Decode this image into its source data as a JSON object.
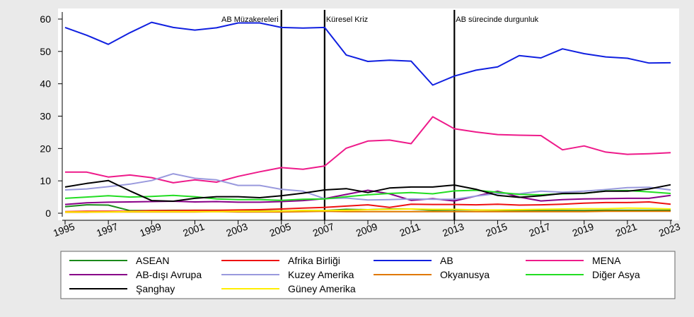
{
  "chart_data": {
    "type": "line",
    "x": [
      1995,
      1996,
      1997,
      1998,
      1999,
      2000,
      2001,
      2002,
      2003,
      2004,
      2005,
      2006,
      2007,
      2008,
      2009,
      2010,
      2011,
      2012,
      2013,
      2014,
      2015,
      2016,
      2017,
      2018,
      2019,
      2020,
      2021,
      2022,
      2023
    ],
    "x_ticks": [
      "1995",
      "1997",
      "1999",
      "2001",
      "2003",
      "2005",
      "2007",
      "2009",
      "2011",
      "2013",
      "2015",
      "2017",
      "2019",
      "2021",
      "2023"
    ],
    "y_ticks": [
      "0",
      "10",
      "20",
      "30",
      "40",
      "50",
      "60"
    ],
    "ylim": [
      0,
      62
    ],
    "xlim": [
      1995,
      2023
    ],
    "grid": false,
    "legend_position": "bottom",
    "legend_columns": 4,
    "annotations": [
      {
        "x": 2005,
        "label": "AB Müzakereleri"
      },
      {
        "x": 2007,
        "label": "Küresel Kriz"
      },
      {
        "x": 2013,
        "label": "AB sürecinde durgunluk"
      }
    ],
    "series": [
      {
        "name": "ASEAN",
        "color": "#1a8a1a",
        "values": [
          2.0,
          2.6,
          2.5,
          0.8,
          0.8,
          0.9,
          0.9,
          0.9,
          0.8,
          0.7,
          0.7,
          0.8,
          0.8,
          1.2,
          1.1,
          1.3,
          1.3,
          0.9,
          1.0,
          1.0,
          0.9,
          0.8,
          0.8,
          0.8,
          0.8,
          0.9,
          0.9,
          0.9,
          0.9
        ]
      },
      {
        "name": "Afrika Birliği",
        "color": "#ee1111",
        "values": [
          0.5,
          0.6,
          0.6,
          0.6,
          0.8,
          0.8,
          0.9,
          0.9,
          1.0,
          1.1,
          1.3,
          1.6,
          1.8,
          2.2,
          2.6,
          1.8,
          2.8,
          2.7,
          2.7,
          2.6,
          2.8,
          2.5,
          2.6,
          2.8,
          3.1,
          3.3,
          3.3,
          3.5,
          2.8
        ]
      },
      {
        "name": "AB",
        "color": "#1020e0",
        "values": [
          57.4,
          55.0,
          52.2,
          55.8,
          59.0,
          57.4,
          56.6,
          57.3,
          58.8,
          58.8,
          57.4,
          57.2,
          57.4,
          48.9,
          46.9,
          47.3,
          47.0,
          39.6,
          42.4,
          44.2,
          45.2,
          48.7,
          48.0,
          50.8,
          49.3,
          48.3,
          47.9,
          46.4,
          46.5
        ]
      },
      {
        "name": "MENA",
        "color": "#ee1a8a",
        "values": [
          12.7,
          12.7,
          11.2,
          11.8,
          11.0,
          9.4,
          10.3,
          9.6,
          11.4,
          12.8,
          14.1,
          13.6,
          14.6,
          20.1,
          22.3,
          22.6,
          21.5,
          29.8,
          26.1,
          25.1,
          24.3,
          24.1,
          24.0,
          19.6,
          20.8,
          18.9,
          18.2,
          18.4,
          18.7
        ]
      },
      {
        "name": "AB-dışı Avrupa",
        "color": "#880088",
        "values": [
          2.7,
          3.2,
          3.4,
          3.5,
          3.6,
          3.7,
          3.5,
          3.6,
          3.4,
          3.4,
          3.6,
          3.9,
          4.5,
          5.8,
          7.1,
          6.0,
          4.0,
          4.5,
          3.8,
          5.3,
          6.8,
          5.0,
          3.8,
          4.2,
          4.4,
          4.5,
          4.6,
          4.6,
          5.5
        ]
      },
      {
        "name": "Kuzey Amerika",
        "color": "#9999dd",
        "values": [
          7.2,
          7.5,
          8.2,
          9.0,
          10.1,
          12.2,
          10.8,
          10.3,
          8.6,
          8.6,
          7.4,
          6.8,
          4.5,
          4.7,
          4.1,
          4.2,
          4.4,
          4.3,
          4.3,
          5.3,
          6.1,
          6.0,
          6.8,
          6.5,
          6.8,
          7.3,
          7.9,
          8.0,
          7.2
        ]
      },
      {
        "name": "Okyanusya",
        "color": "#e07800",
        "values": [
          0.3,
          0.3,
          0.4,
          0.4,
          0.4,
          0.4,
          0.4,
          0.5,
          0.4,
          0.4,
          0.4,
          0.5,
          0.6,
          0.5,
          0.5,
          0.5,
          0.5,
          0.5,
          0.5,
          0.5,
          0.5,
          0.5,
          0.5,
          0.5,
          0.5,
          0.6,
          0.6,
          0.6,
          0.6
        ]
      },
      {
        "name": "Diğer Asya",
        "color": "#22dd22",
        "values": [
          4.6,
          5.0,
          5.4,
          5.0,
          5.2,
          5.5,
          5.1,
          4.4,
          4.2,
          4.2,
          4.0,
          4.3,
          4.4,
          5.1,
          5.7,
          6.1,
          6.4,
          6.0,
          6.9,
          7.1,
          6.5,
          5.8,
          5.7,
          6.0,
          6.1,
          6.9,
          7.0,
          6.6,
          6.1
        ]
      },
      {
        "name": "Şanghay",
        "color": "#000000",
        "values": [
          8.1,
          9.2,
          10.1,
          6.9,
          3.9,
          3.7,
          4.6,
          5.1,
          5.1,
          4.8,
          5.4,
          6.2,
          7.2,
          7.6,
          6.4,
          7.8,
          8.1,
          8.1,
          8.7,
          7.4,
          5.5,
          4.9,
          5.4,
          6.1,
          6.2,
          6.8,
          6.8,
          7.5,
          8.8
        ]
      },
      {
        "name": "Güney Amerika",
        "color": "#ffee00",
        "values": [
          0.4,
          0.4,
          0.4,
          0.5,
          0.5,
          0.5,
          0.5,
          0.5,
          0.6,
          0.6,
          0.7,
          0.8,
          0.8,
          0.9,
          1.1,
          1.2,
          1.3,
          1.2,
          1.2,
          1.0,
          1.0,
          1.1,
          1.2,
          1.3,
          1.4,
          1.4,
          1.6,
          1.5,
          1.3
        ]
      }
    ]
  }
}
